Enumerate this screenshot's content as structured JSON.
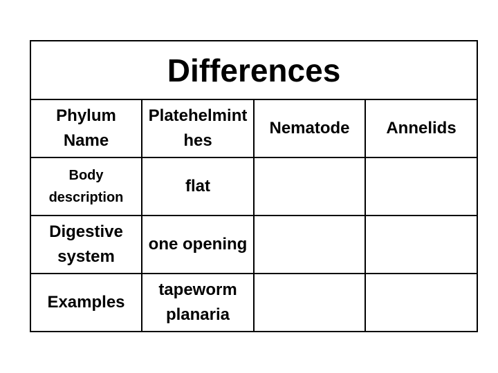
{
  "table": {
    "title": "Differences",
    "header": [
      "Phylum Name",
      "Platehelminthes",
      "Nematode",
      "Annelids"
    ],
    "rows": [
      [
        "Body description",
        "flat"
      ],
      [
        "Digestive system",
        "one opening"
      ],
      [
        "Examples",
        "tapeworm planaria"
      ]
    ]
  }
}
